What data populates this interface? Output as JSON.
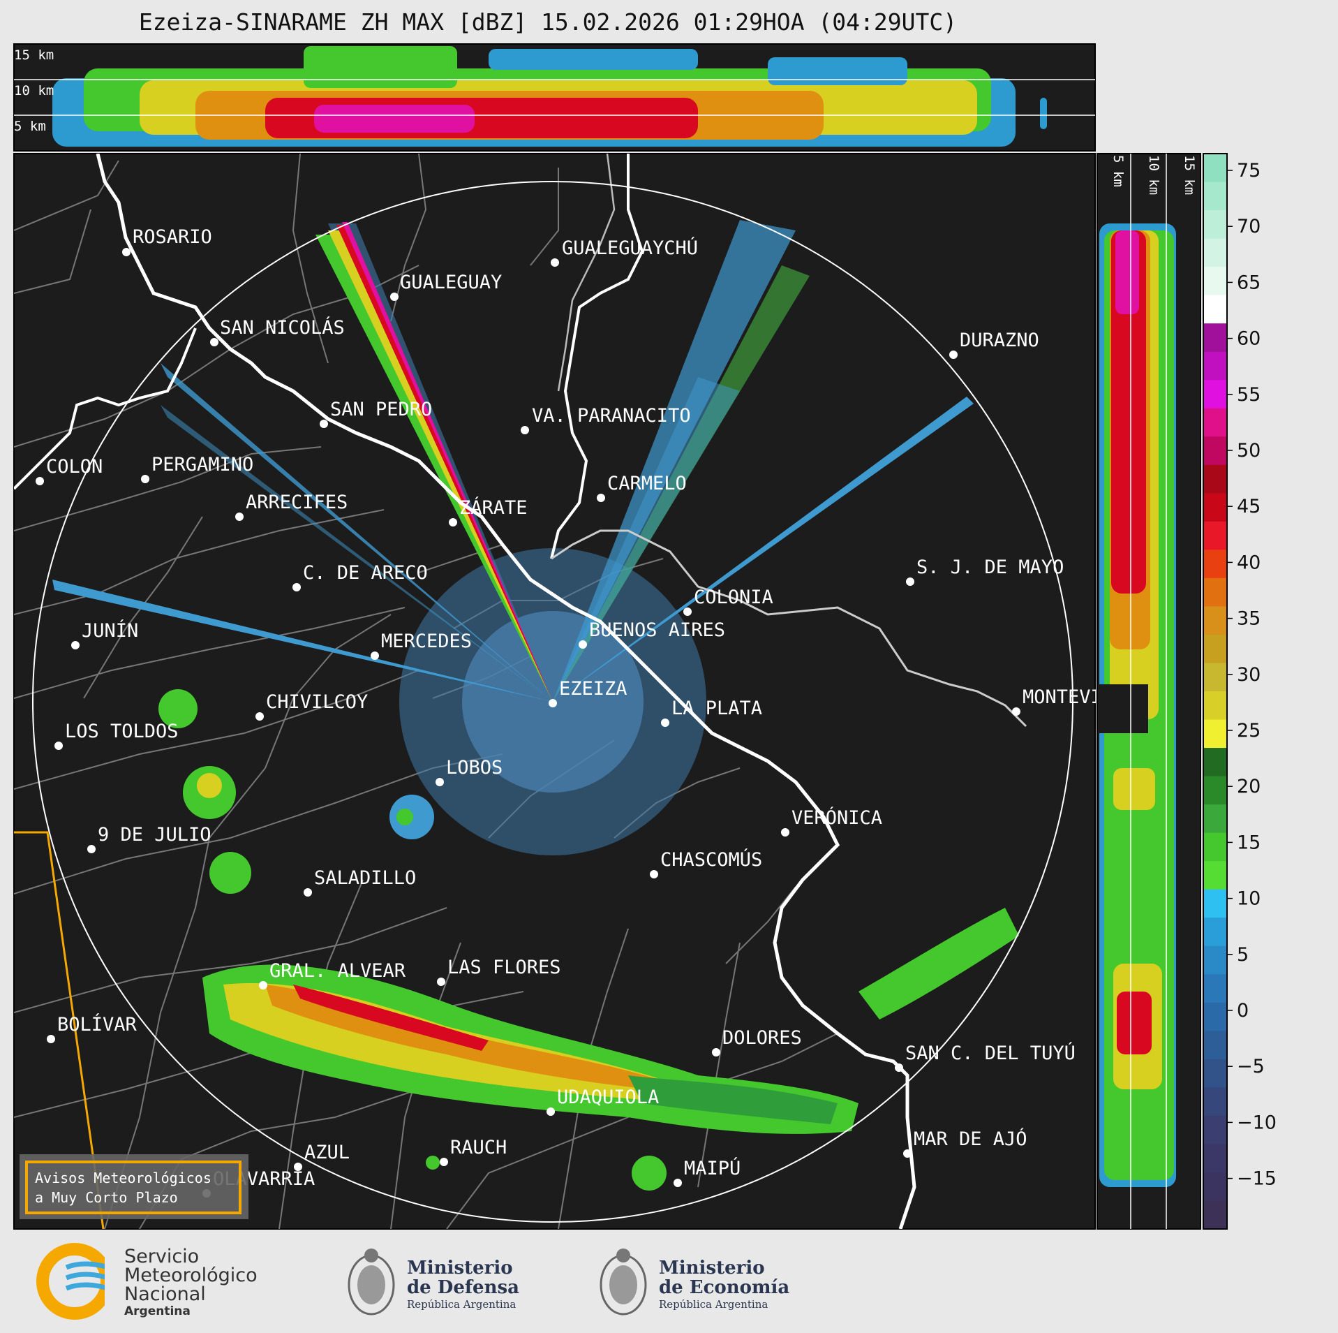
{
  "title": "Ezeiza-SINARAME ZH MAX [dBZ] 15.02.2026 01:29HOA (04:29UTC)",
  "top_panel": {
    "labels": [
      "15 km",
      "10 km",
      "5 km"
    ]
  },
  "side_panel": {
    "labels": [
      "5 km",
      "10 km",
      "15 km"
    ]
  },
  "colorbar": {
    "ticks": [
      "75",
      "70",
      "65",
      "60",
      "55",
      "50",
      "45",
      "40",
      "35",
      "30",
      "25",
      "20",
      "15",
      "10",
      "5",
      "0",
      "−5",
      "−10",
      "−15"
    ]
  },
  "cities": [
    {
      "name": "ROSARIO"
    },
    {
      "name": "GUALEGUAYCHÚ"
    },
    {
      "name": "GUALEGUAY"
    },
    {
      "name": "SAN NICOLÁS"
    },
    {
      "name": "DURAZNO"
    },
    {
      "name": "SAN PEDRO"
    },
    {
      "name": "VA. PARANACITO"
    },
    {
      "name": "COLON"
    },
    {
      "name": "PERGAMINO"
    },
    {
      "name": "CARMELO"
    },
    {
      "name": "ARRECIFES"
    },
    {
      "name": "ZÁRATE"
    },
    {
      "name": "S. J. DE MAYO"
    },
    {
      "name": "C. DE ARECO"
    },
    {
      "name": "COLONIA"
    },
    {
      "name": "JUNÍN"
    },
    {
      "name": "BUENOS AIRES"
    },
    {
      "name": "MERCEDES"
    },
    {
      "name": "EZEIZA"
    },
    {
      "name": "MONTEVIDEO"
    },
    {
      "name": "CHIVILCOY"
    },
    {
      "name": "LA PLATA"
    },
    {
      "name": "LOS TOLDOS"
    },
    {
      "name": "LOBOS"
    },
    {
      "name": "VERÓNICA"
    },
    {
      "name": "9 DE JULIO"
    },
    {
      "name": "CHASCOMÚS"
    },
    {
      "name": "SALADILLO"
    },
    {
      "name": "GRAL. ALVEAR"
    },
    {
      "name": "LAS FLORES"
    },
    {
      "name": "BOLÍVAR"
    },
    {
      "name": "DOLORES"
    },
    {
      "name": "SAN C. DEL TUYÚ"
    },
    {
      "name": "UDAQUIOLA"
    },
    {
      "name": "MAR DE AJÓ"
    },
    {
      "name": "AZUL"
    },
    {
      "name": "RAUCH"
    },
    {
      "name": "OLAVARRÍA"
    },
    {
      "name": "MAIPÚ"
    }
  ],
  "alert_box": {
    "line1": "Avisos Meteorológicos",
    "line2": "a Muy Corto Plazo"
  },
  "footer": {
    "smn": {
      "line1": "Servicio",
      "line2": "Meteorológico",
      "line3": "Nacional",
      "line4": "Argentina"
    },
    "defensa": {
      "line1": "Ministerio",
      "line2": "de Defensa",
      "line3": "República Argentina"
    },
    "economia": {
      "line1": "Ministerio",
      "line2": "de Economía",
      "line3": "República Argentina"
    }
  },
  "colors": {
    "panel_bg": "#1c1c1c",
    "page_bg": "#e8e8e8",
    "accent_orange": "#f5a800",
    "smn_blue": "#3ea8dc"
  }
}
